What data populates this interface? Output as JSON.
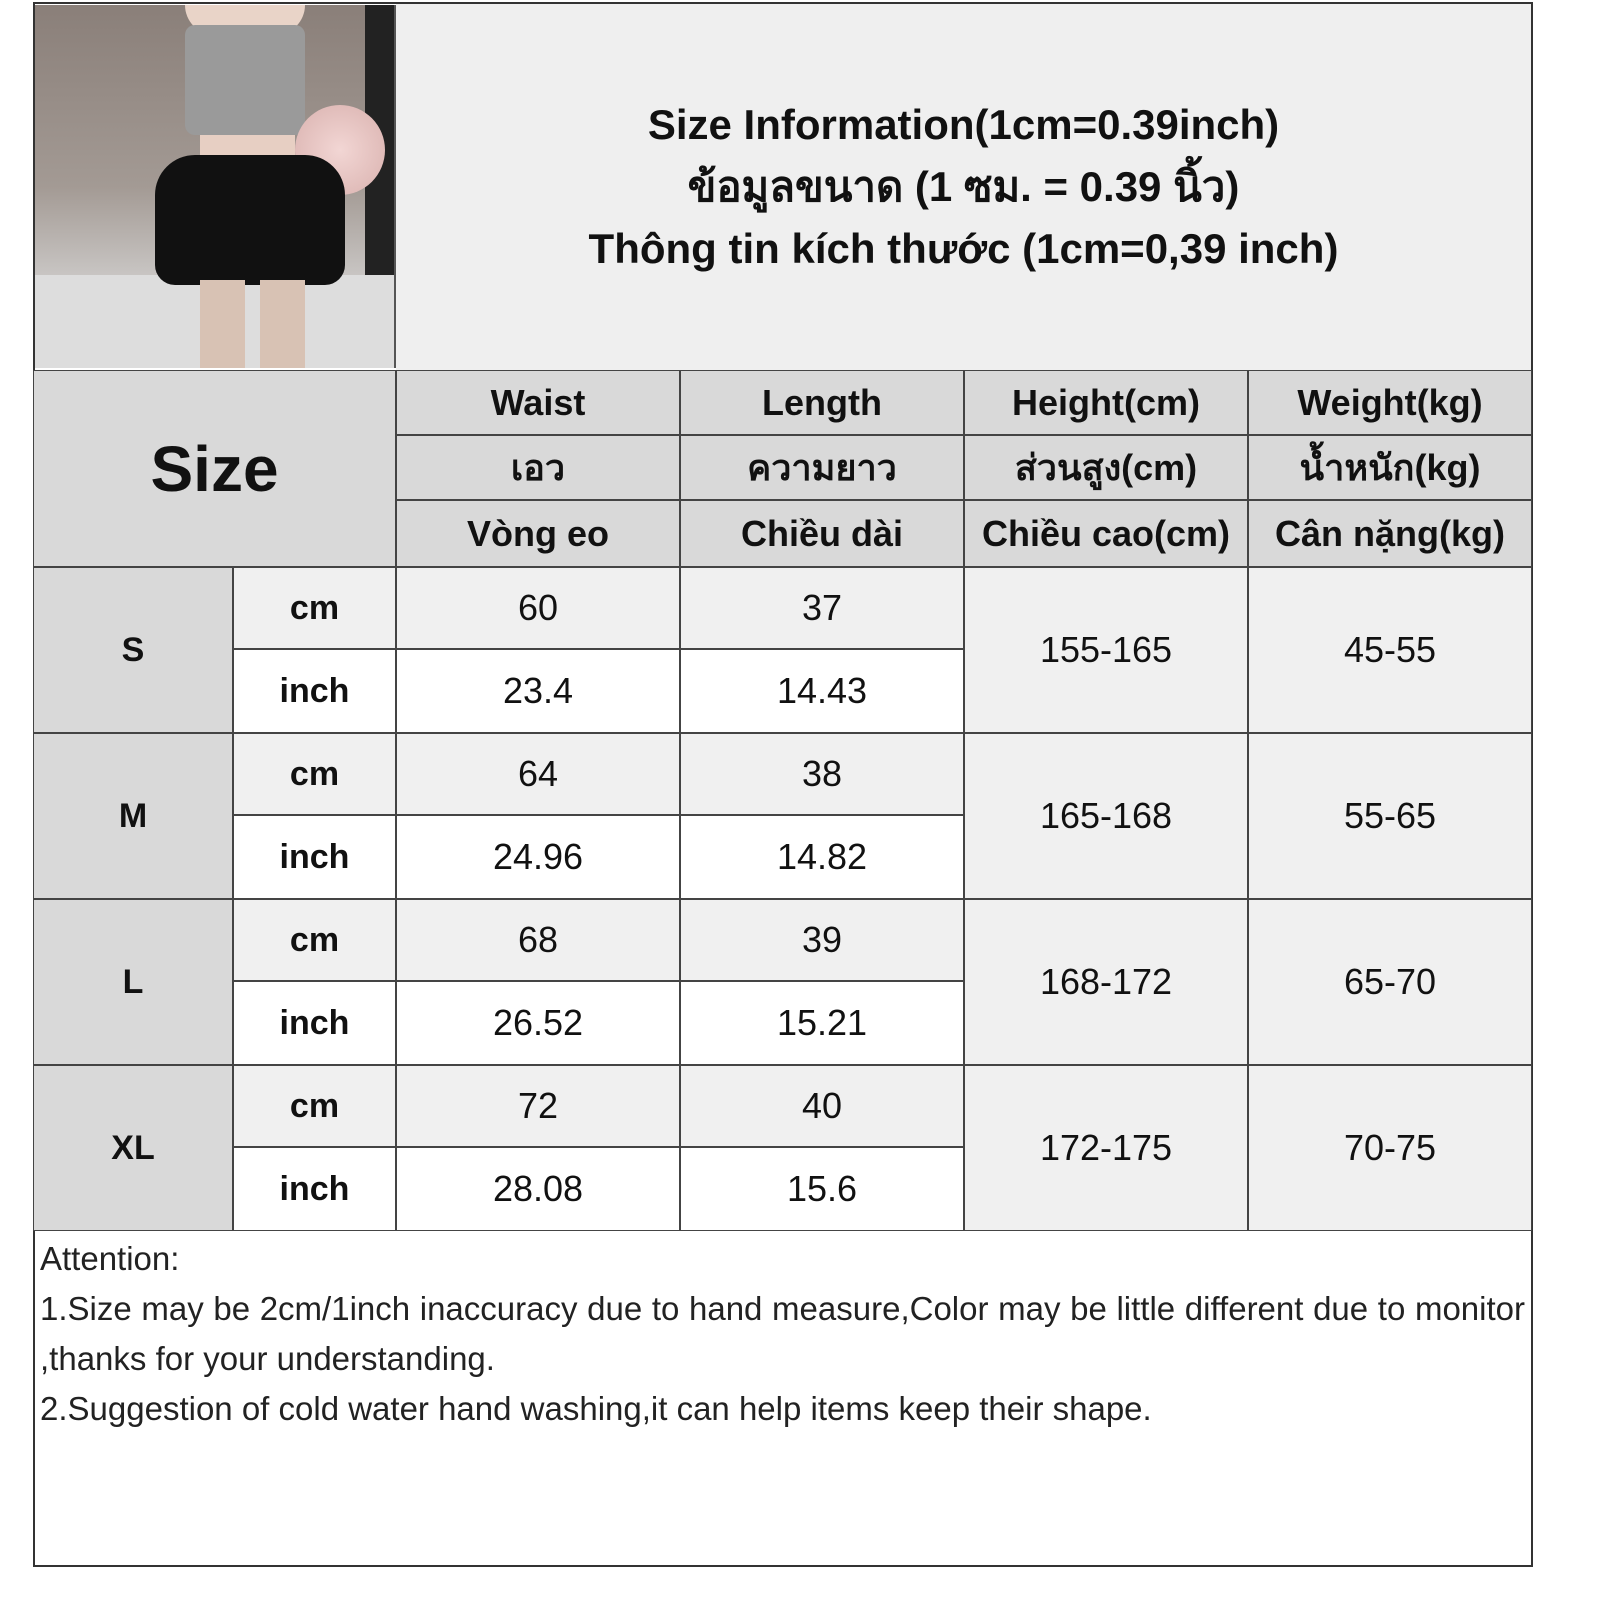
{
  "header": {
    "lines": [
      "Size Information(1cm=0.39inch)",
      "ข้อมูลขนาด (1 ซม. = 0.39 นิ้ว)",
      "Thông tin kích thước (1cm=0,39 inch)"
    ]
  },
  "table": {
    "size_label": "Size",
    "columns": [
      {
        "en": "Waist",
        "th": "เอว",
        "vi": "Vòng eo"
      },
      {
        "en": "Length",
        "th": "ความยาว",
        "vi": "Chiều dài"
      },
      {
        "en": "Height(cm)",
        "th": "ส่วนสูง(cm)",
        "vi": "Chiều cao(cm)"
      },
      {
        "en": "Weight(kg)",
        "th": "น้ำหนัก(kg)",
        "vi": "Cân nặng(kg)"
      }
    ],
    "unit_cm": "cm",
    "unit_inch": "inch",
    "rows": [
      {
        "size": "S",
        "waist_cm": "60",
        "length_cm": "37",
        "waist_inch": "23.4",
        "length_inch": "14.43",
        "height": "155-165",
        "weight": "45-55"
      },
      {
        "size": "M",
        "waist_cm": "64",
        "length_cm": "38",
        "waist_inch": "24.96",
        "length_inch": "14.82",
        "height": "165-168",
        "weight": "55-65"
      },
      {
        "size": "L",
        "waist_cm": "68",
        "length_cm": "39",
        "waist_inch": "26.52",
        "length_inch": "15.21",
        "height": "168-172",
        "weight": "65-70"
      },
      {
        "size": "XL",
        "waist_cm": "72",
        "length_cm": "40",
        "waist_inch": "28.08",
        "length_inch": "15.6",
        "height": "172-175",
        "weight": "70-75"
      }
    ]
  },
  "notes": {
    "title": "Attention:",
    "items": [
      "1.Size may be 2cm/1inch inaccuracy due to hand measure,Color may be little different due to monitor ,thanks for your understanding.",
      "2.Suggestion of cold water hand washing,it can help items keep their shape."
    ]
  }
}
